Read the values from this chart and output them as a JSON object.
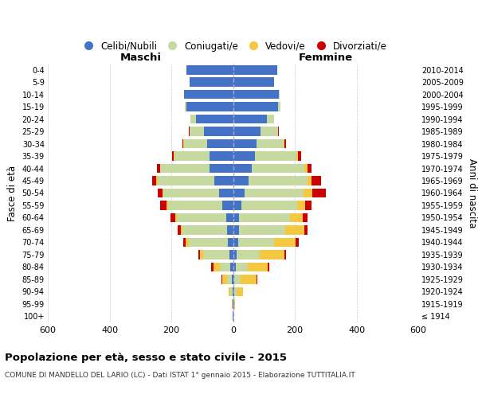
{
  "age_groups": [
    "100+",
    "95-99",
    "90-94",
    "85-89",
    "80-84",
    "75-79",
    "70-74",
    "65-69",
    "60-64",
    "55-59",
    "50-54",
    "45-49",
    "40-44",
    "35-39",
    "30-34",
    "25-29",
    "20-24",
    "15-19",
    "10-14",
    "5-9",
    "0-4"
  ],
  "birth_years": [
    "≤ 1914",
    "1915-1919",
    "1920-1924",
    "1925-1929",
    "1930-1934",
    "1935-1939",
    "1940-1944",
    "1945-1949",
    "1950-1954",
    "1955-1959",
    "1960-1964",
    "1965-1969",
    "1970-1974",
    "1975-1979",
    "1980-1984",
    "1985-1989",
    "1990-1994",
    "1995-1999",
    "2000-2004",
    "2005-2009",
    "2010-2014"
  ],
  "male": {
    "celibe": [
      1,
      1,
      2,
      5,
      8,
      12,
      18,
      20,
      22,
      35,
      45,
      60,
      75,
      75,
      85,
      95,
      120,
      150,
      160,
      140,
      150
    ],
    "coniugato": [
      0,
      1,
      6,
      15,
      35,
      85,
      125,
      145,
      160,
      175,
      180,
      185,
      160,
      115,
      75,
      45,
      18,
      5,
      0,
      0,
      0
    ],
    "vedovo": [
      0,
      1,
      5,
      15,
      20,
      10,
      10,
      5,
      5,
      5,
      3,
      3,
      2,
      2,
      1,
      1,
      0,
      0,
      0,
      0,
      0
    ],
    "divorziato": [
      0,
      0,
      0,
      2,
      8,
      5,
      8,
      10,
      15,
      20,
      15,
      15,
      10,
      5,
      2,
      1,
      0,
      0,
      0,
      0,
      0
    ]
  },
  "female": {
    "nubile": [
      1,
      1,
      3,
      5,
      8,
      12,
      18,
      20,
      20,
      28,
      38,
      50,
      60,
      70,
      75,
      90,
      110,
      145,
      148,
      132,
      142
    ],
    "coniugata": [
      0,
      2,
      8,
      20,
      40,
      75,
      115,
      150,
      165,
      180,
      190,
      190,
      170,
      135,
      90,
      55,
      22,
      8,
      2,
      0,
      0
    ],
    "vedova": [
      0,
      3,
      22,
      52,
      65,
      80,
      70,
      60,
      40,
      25,
      30,
      15,
      10,
      5,
      2,
      1,
      0,
      0,
      0,
      0,
      0
    ],
    "divorziata": [
      0,
      0,
      0,
      2,
      5,
      5,
      10,
      12,
      15,
      20,
      42,
      30,
      15,
      10,
      5,
      2,
      1,
      0,
      0,
      0,
      0
    ]
  },
  "colors": {
    "celibe": "#4472c4",
    "coniugato": "#c5d9a0",
    "vedovo": "#f5c842",
    "divorziato": "#cc0000"
  },
  "legend_labels": [
    "Celibi/Nubili",
    "Coniugati/e",
    "Vedovi/e",
    "Divorziati/e"
  ],
  "title": "Popolazione per età, sesso e stato civile - 2015",
  "subtitle": "COMUNE DI MANDELLO DEL LARIO (LC) - Dati ISTAT 1° gennaio 2015 - Elaborazione TUTTITALIA.IT",
  "xlabel_left": "Maschi",
  "xlabel_right": "Femmine",
  "ylabel": "Fasce di età",
  "ylabel_right": "Anni di nascita",
  "xlim": 600,
  "bg_color": "#ffffff",
  "grid_color": "#cccccc"
}
